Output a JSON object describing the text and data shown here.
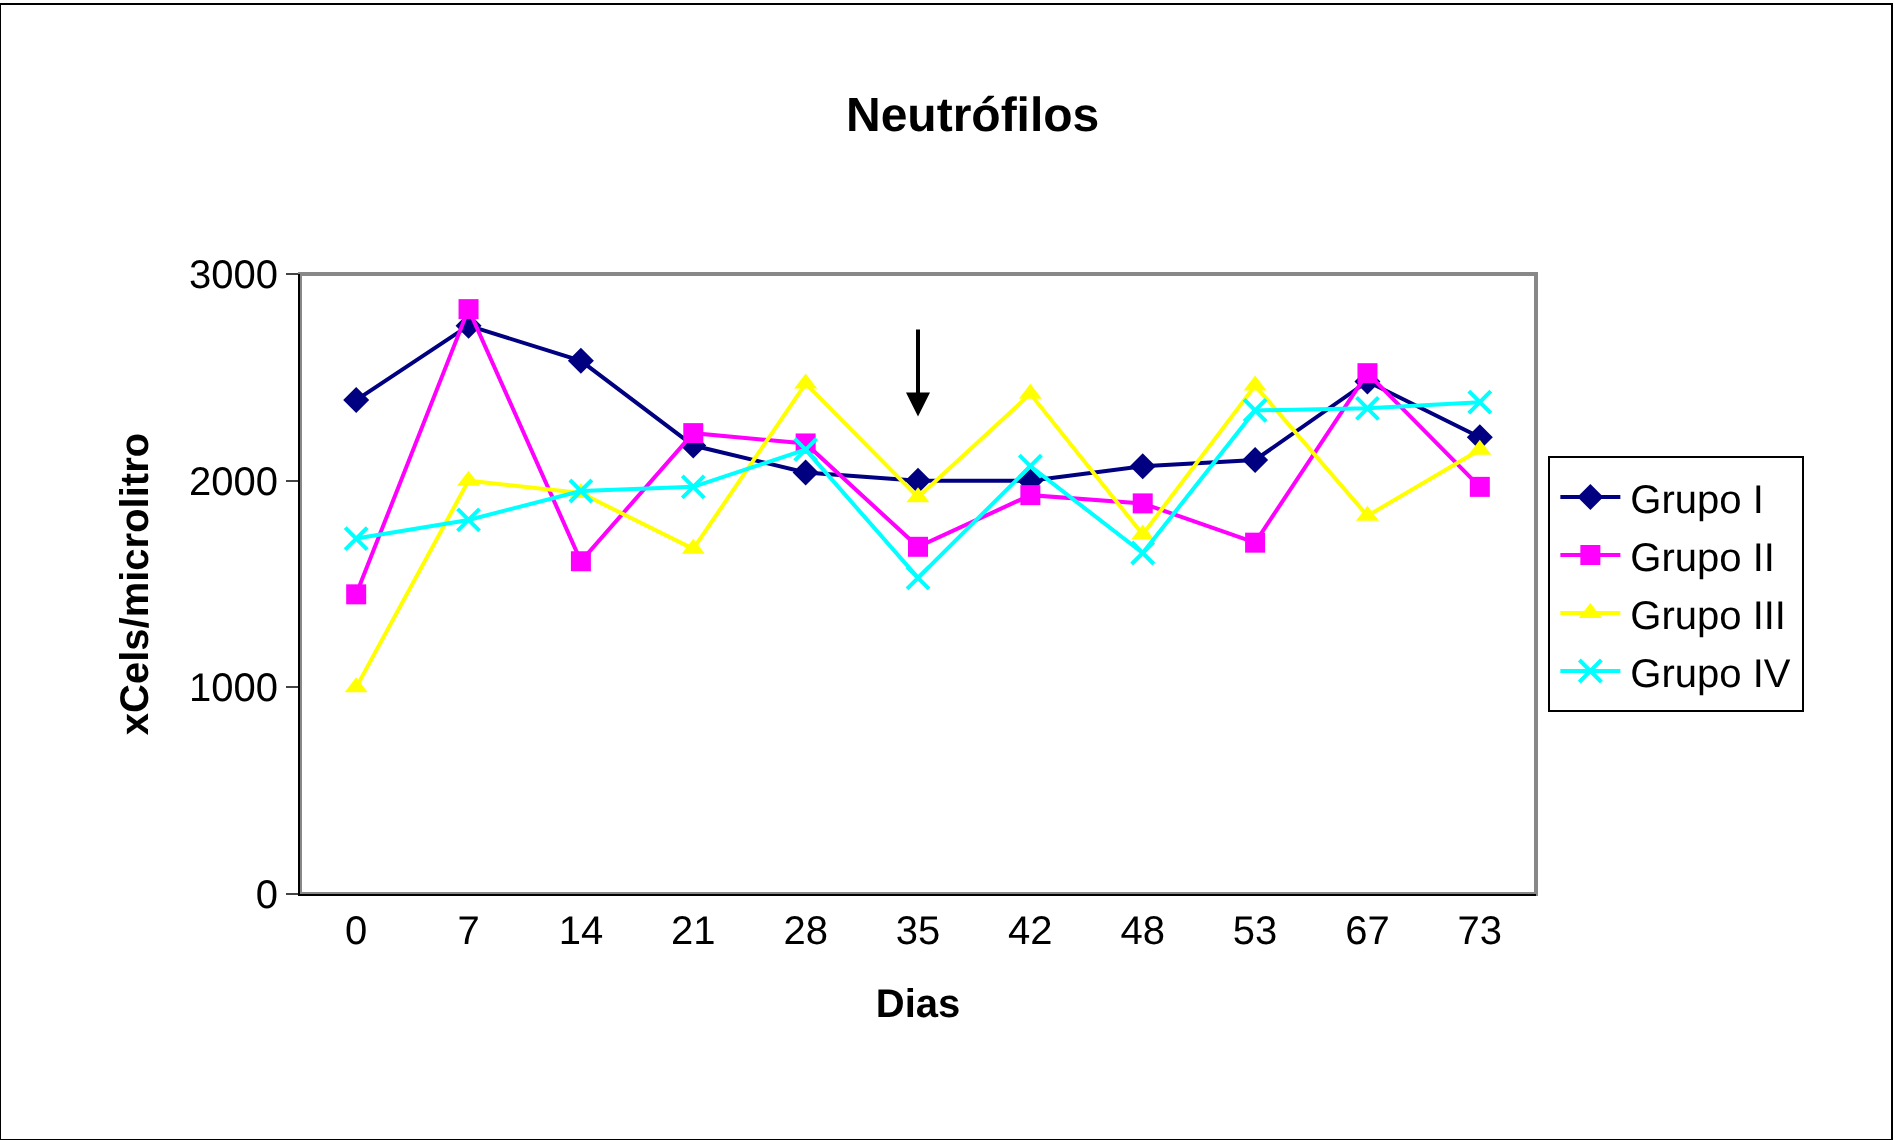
{
  "chart_data": {
    "type": "line",
    "title": "Neutrófilos",
    "xlabel": "Dias",
    "ylabel": "xCels/microlitro",
    "categories": [
      "0",
      "7",
      "14",
      "21",
      "28",
      "35",
      "42",
      "48",
      "53",
      "67",
      "73"
    ],
    "series": [
      {
        "name": "Grupo I",
        "color": "#000080",
        "marker": "diamond",
        "values": [
          2390,
          2750,
          2580,
          2170,
          2040,
          2000,
          2000,
          2070,
          2100,
          2480,
          2210
        ]
      },
      {
        "name": "Grupo II",
        "color": "#ff00ff",
        "marker": "square",
        "values": [
          1450,
          2830,
          1610,
          2230,
          2180,
          1680,
          1930,
          1890,
          1700,
          2520,
          1970
        ]
      },
      {
        "name": "Grupo III",
        "color": "#ffff00",
        "marker": "triangle",
        "values": [
          1000,
          2000,
          1940,
          1670,
          2470,
          1920,
          2420,
          1740,
          2460,
          1830,
          2150
        ]
      },
      {
        "name": "Grupo IV",
        "color": "#00ffff",
        "marker": "cross",
        "values": [
          1720,
          1810,
          1950,
          1970,
          2150,
          1530,
          2070,
          1650,
          2340,
          2350,
          2380
        ]
      }
    ],
    "ylim": [
      0,
      3000
    ],
    "yticks": [
      0,
      1000,
      2000,
      3000
    ],
    "grid": false,
    "legend": "right",
    "line_style": "solid"
  }
}
